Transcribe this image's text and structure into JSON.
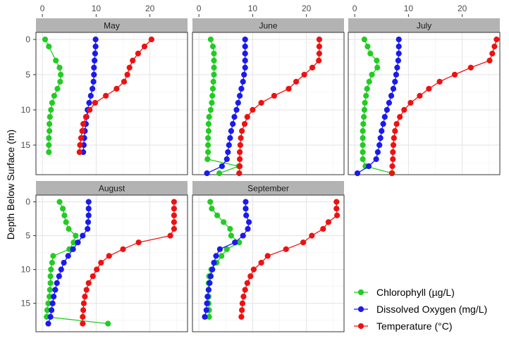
{
  "chart_data": {
    "type": "line",
    "ylabel": "Depth Below Surface (m)",
    "xlabel": "",
    "xlim": [
      -1.2,
      27
    ],
    "ylim": [
      -1.0,
      19.2
    ],
    "xticks": [
      0,
      10,
      20
    ],
    "yticks": [
      0,
      5,
      10,
      15
    ],
    "y_reversed": true,
    "grid": true,
    "legend_position": "bottom-right",
    "series_colors": {
      "chlorophyll": "#22cc22",
      "oxygen": "#1a1aee",
      "temperature": "#ee1111"
    },
    "legend": [
      {
        "key": "chlorophyll",
        "label": "Chlorophyll (µg/L)"
      },
      {
        "key": "oxygen",
        "label": "Dissolved Oxygen (mg/L)"
      },
      {
        "key": "temperature",
        "label": "Temperature (°C)"
      }
    ],
    "panels": [
      {
        "title": "May",
        "series": {
          "chlorophyll": [
            [
              0.5,
              0
            ],
            [
              1.2,
              1
            ],
            [
              2.5,
              3
            ],
            [
              3.2,
              4
            ],
            [
              3.4,
              5
            ],
            [
              3.3,
              6
            ],
            [
              2.8,
              7
            ],
            [
              2.2,
              8
            ],
            [
              1.8,
              9
            ],
            [
              1.6,
              10
            ],
            [
              1.4,
              11
            ],
            [
              1.3,
              12
            ],
            [
              1.3,
              13
            ],
            [
              1.2,
              14
            ],
            [
              1.2,
              15
            ],
            [
              1.2,
              16
            ]
          ],
          "oxygen": [
            [
              9.9,
              0
            ],
            [
              9.9,
              1
            ],
            [
              9.8,
              2
            ],
            [
              9.7,
              3
            ],
            [
              9.6,
              4
            ],
            [
              9.6,
              5
            ],
            [
              9.5,
              6
            ],
            [
              9.3,
              7
            ],
            [
              9.0,
              8
            ],
            [
              8.7,
              9
            ],
            [
              8.4,
              10
            ],
            [
              8.2,
              11
            ],
            [
              8.1,
              12
            ],
            [
              7.9,
              13
            ],
            [
              7.8,
              14
            ],
            [
              7.7,
              15
            ],
            [
              7.6,
              16
            ]
          ],
          "temperature": [
            [
              20.3,
              0
            ],
            [
              19.0,
              1
            ],
            [
              17.8,
              2
            ],
            [
              16.8,
              3
            ],
            [
              16.2,
              4
            ],
            [
              15.8,
              5
            ],
            [
              15.2,
              6
            ],
            [
              13.8,
              7
            ],
            [
              11.8,
              8
            ],
            [
              9.8,
              9
            ],
            [
              8.8,
              10
            ],
            [
              8.1,
              11
            ],
            [
              7.6,
              12
            ],
            [
              7.4,
              13
            ],
            [
              7.2,
              14
            ],
            [
              7.0,
              15
            ],
            [
              6.9,
              16
            ]
          ]
        }
      },
      {
        "title": "June",
        "series": {
          "chlorophyll": [
            [
              2.2,
              0
            ],
            [
              2.6,
              1
            ],
            [
              2.8,
              2
            ],
            [
              2.8,
              3
            ],
            [
              2.8,
              4
            ],
            [
              2.8,
              5
            ],
            [
              2.7,
              6
            ],
            [
              2.6,
              7
            ],
            [
              2.5,
              8
            ],
            [
              2.4,
              9
            ],
            [
              2.2,
              10
            ],
            [
              1.9,
              11
            ],
            [
              1.8,
              12
            ],
            [
              1.8,
              13
            ],
            [
              1.7,
              14
            ],
            [
              1.7,
              15
            ],
            [
              1.7,
              16
            ],
            [
              1.6,
              17
            ],
            [
              7.4,
              18
            ],
            [
              3.8,
              19
            ]
          ],
          "oxygen": [
            [
              8.6,
              0
            ],
            [
              8.6,
              1
            ],
            [
              8.6,
              2
            ],
            [
              8.6,
              3
            ],
            [
              8.6,
              4
            ],
            [
              8.4,
              5
            ],
            [
              8.2,
              6
            ],
            [
              7.9,
              7
            ],
            [
              7.6,
              8
            ],
            [
              7.3,
              9
            ],
            [
              7.0,
              10
            ],
            [
              6.6,
              11
            ],
            [
              6.3,
              12
            ],
            [
              6.0,
              13
            ],
            [
              5.8,
              14
            ],
            [
              5.6,
              15
            ],
            [
              5.4,
              16
            ],
            [
              5.2,
              17
            ],
            [
              4.3,
              18
            ],
            [
              1.5,
              19
            ]
          ],
          "temperature": [
            [
              22.4,
              0
            ],
            [
              22.4,
              1
            ],
            [
              22.4,
              2
            ],
            [
              22.3,
              3
            ],
            [
              21.1,
              4
            ],
            [
              19.6,
              5
            ],
            [
              18.1,
              6
            ],
            [
              16.7,
              7
            ],
            [
              14.0,
              8
            ],
            [
              11.6,
              9
            ],
            [
              10.0,
              10
            ],
            [
              9.0,
              11
            ],
            [
              8.5,
              12
            ],
            [
              8.0,
              13
            ],
            [
              7.8,
              14
            ],
            [
              7.7,
              15
            ],
            [
              7.6,
              16
            ],
            [
              7.6,
              17
            ],
            [
              7.6,
              18
            ],
            [
              7.5,
              19
            ]
          ]
        }
      },
      {
        "title": "July",
        "series": {
          "chlorophyll": [
            [
              1.8,
              0
            ],
            [
              2.4,
              1
            ],
            [
              2.9,
              2
            ],
            [
              4.1,
              3
            ],
            [
              4.2,
              4
            ],
            [
              3.2,
              5
            ],
            [
              2.7,
              6
            ],
            [
              2.3,
              7
            ],
            [
              2.1,
              8
            ],
            [
              1.9,
              9
            ],
            [
              1.8,
              10
            ],
            [
              1.7,
              11
            ],
            [
              1.6,
              12
            ],
            [
              1.5,
              13
            ],
            [
              1.5,
              14
            ],
            [
              1.5,
              15
            ],
            [
              1.5,
              16
            ],
            [
              1.5,
              17
            ],
            [
              2.0,
              18
            ],
            [
              7.0,
              19
            ]
          ],
          "oxygen": [
            [
              8.2,
              0
            ],
            [
              8.2,
              1
            ],
            [
              8.2,
              2
            ],
            [
              8.1,
              3
            ],
            [
              7.9,
              4
            ],
            [
              7.7,
              5
            ],
            [
              7.5,
              6
            ],
            [
              7.2,
              7
            ],
            [
              6.8,
              8
            ],
            [
              6.4,
              9
            ],
            [
              6.0,
              10
            ],
            [
              5.6,
              11
            ],
            [
              5.3,
              12
            ],
            [
              5.0,
              13
            ],
            [
              4.8,
              14
            ],
            [
              4.6,
              15
            ],
            [
              4.3,
              16
            ],
            [
              4.0,
              17
            ],
            [
              2.6,
              18
            ],
            [
              0.5,
              19
            ]
          ],
          "temperature": [
            [
              26.4,
              0
            ],
            [
              26.0,
              1
            ],
            [
              25.6,
              2
            ],
            [
              25.1,
              3
            ],
            [
              21.6,
              4
            ],
            [
              18.6,
              5
            ],
            [
              15.8,
              6
            ],
            [
              13.8,
              7
            ],
            [
              12.1,
              8
            ],
            [
              10.4,
              9
            ],
            [
              9.2,
              10
            ],
            [
              8.4,
              11
            ],
            [
              7.8,
              12
            ],
            [
              7.5,
              13
            ],
            [
              7.3,
              14
            ],
            [
              7.2,
              15
            ],
            [
              7.1,
              16
            ],
            [
              7.1,
              17
            ],
            [
              7.0,
              18
            ],
            [
              6.9,
              19
            ]
          ]
        }
      },
      {
        "title": "August",
        "series": {
          "chlorophyll": [
            [
              3.2,
              0
            ],
            [
              3.8,
              1
            ],
            [
              4.1,
              2
            ],
            [
              4.4,
              3
            ],
            [
              4.9,
              4
            ],
            [
              6.2,
              5
            ],
            [
              5.8,
              6
            ],
            [
              5.0,
              7
            ],
            [
              2.0,
              8
            ],
            [
              1.8,
              9
            ],
            [
              1.6,
              10
            ],
            [
              1.5,
              11
            ],
            [
              1.5,
              12
            ],
            [
              1.4,
              13
            ],
            [
              1.3,
              14
            ],
            [
              1.1,
              15
            ],
            [
              0.9,
              16
            ],
            [
              0.8,
              17
            ],
            [
              12.2,
              18
            ]
          ],
          "oxygen": [
            [
              8.6,
              0
            ],
            [
              8.6,
              1
            ],
            [
              8.6,
              2
            ],
            [
              8.5,
              3
            ],
            [
              8.4,
              4
            ],
            [
              7.5,
              5
            ],
            [
              6.6,
              6
            ],
            [
              5.7,
              7
            ],
            [
              4.8,
              8
            ],
            [
              4.0,
              9
            ],
            [
              3.5,
              10
            ],
            [
              3.1,
              11
            ],
            [
              2.7,
              12
            ],
            [
              2.4,
              13
            ],
            [
              2.1,
              14
            ],
            [
              1.9,
              15
            ],
            [
              1.7,
              16
            ],
            [
              1.5,
              17
            ],
            [
              1.1,
              18
            ]
          ],
          "temperature": [
            [
              24.5,
              0
            ],
            [
              24.5,
              1
            ],
            [
              24.5,
              2
            ],
            [
              24.5,
              3
            ],
            [
              24.5,
              4
            ],
            [
              23.8,
              5
            ],
            [
              17.9,
              6
            ],
            [
              15.0,
              7
            ],
            [
              12.4,
              8
            ],
            [
              10.9,
              9
            ],
            [
              10.1,
              10
            ],
            [
              9.4,
              11
            ],
            [
              8.6,
              12
            ],
            [
              8.2,
              13
            ],
            [
              7.9,
              14
            ],
            [
              7.7,
              15
            ],
            [
              7.6,
              16
            ],
            [
              7.5,
              17
            ],
            [
              7.5,
              18
            ]
          ]
        }
      },
      {
        "title": "September",
        "series": {
          "chlorophyll": [
            [
              2.1,
              0
            ],
            [
              2.4,
              1
            ],
            [
              3.4,
              2
            ],
            [
              4.6,
              3
            ],
            [
              5.8,
              4
            ],
            [
              6.0,
              5
            ],
            [
              7.5,
              6
            ],
            [
              5.2,
              7
            ],
            [
              4.2,
              8
            ],
            [
              3.3,
              9
            ],
            [
              2.3,
              10
            ],
            [
              1.9,
              11
            ],
            [
              1.8,
              12
            ],
            [
              1.8,
              13
            ],
            [
              1.8,
              14
            ],
            [
              1.8,
              15
            ],
            [
              1.9,
              16
            ],
            [
              1.9,
              17
            ]
          ],
          "oxygen": [
            [
              8.7,
              0
            ],
            [
              8.7,
              1
            ],
            [
              8.8,
              2
            ],
            [
              9.3,
              3
            ],
            [
              9.1,
              4
            ],
            [
              8.2,
              5
            ],
            [
              6.7,
              6
            ],
            [
              3.9,
              7
            ],
            [
              3.2,
              8
            ],
            [
              2.8,
              9
            ],
            [
              2.5,
              10
            ],
            [
              2.2,
              11
            ],
            [
              2.0,
              12
            ],
            [
              1.8,
              13
            ],
            [
              1.6,
              14
            ],
            [
              1.5,
              15
            ],
            [
              1.4,
              16
            ],
            [
              1.1,
              17
            ]
          ],
          "temperature": [
            [
              25.6,
              0
            ],
            [
              25.6,
              1
            ],
            [
              25.7,
              2
            ],
            [
              24.1,
              3
            ],
            [
              23.1,
              4
            ],
            [
              21.0,
              5
            ],
            [
              19.4,
              6
            ],
            [
              16.2,
              7
            ],
            [
              12.8,
              8
            ],
            [
              11.6,
              9
            ],
            [
              10.2,
              10
            ],
            [
              9.6,
              11
            ],
            [
              9.0,
              12
            ],
            [
              8.6,
              13
            ],
            [
              8.3,
              14
            ],
            [
              8.1,
              15
            ],
            [
              8.0,
              16
            ],
            [
              7.9,
              17
            ]
          ]
        }
      }
    ]
  }
}
